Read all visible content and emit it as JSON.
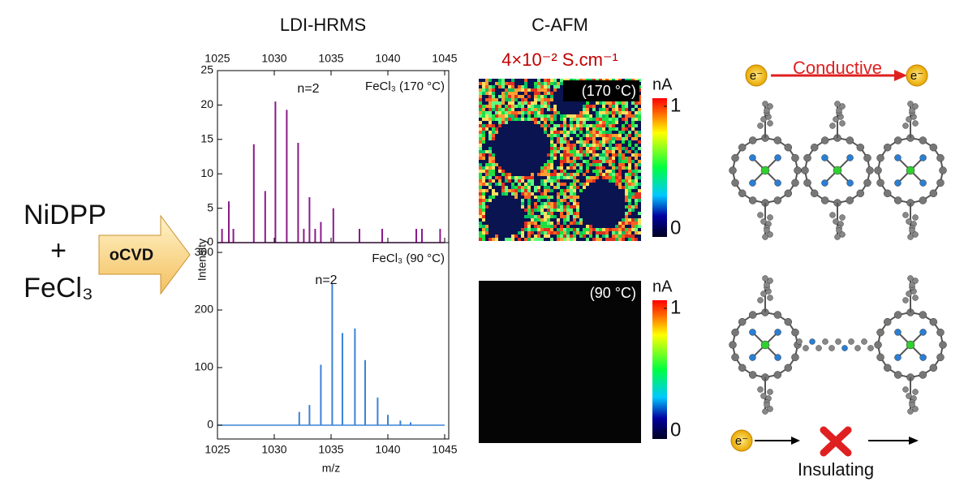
{
  "scheme": {
    "reactant": "NiDPP",
    "plus": "+",
    "oxidant": "FeCl₃",
    "process": "oCVD"
  },
  "chart_data": [
    {
      "type": "stem",
      "title": "LDI-HRMS",
      "ylabel": "Intensity",
      "annotation": "n=2",
      "label": "FeCl₃ (170 °C)",
      "color": "#8b1a8b",
      "x": [
        1025.4,
        1026.0,
        1026.4,
        1028.2,
        1029.2,
        1030.1,
        1031.1,
        1032.1,
        1032.6,
        1033.1,
        1033.6,
        1034.1,
        1035.2,
        1037.5,
        1039.5,
        1042.5,
        1043.0,
        1044.6
      ],
      "values": [
        2,
        6,
        2,
        14.3,
        7.5,
        20.5,
        19.3,
        14.5,
        2,
        6.6,
        2,
        3,
        5,
        2,
        2,
        2,
        2,
        2
      ],
      "xlim": [
        1025,
        1045
      ],
      "xticks": [
        1025,
        1030,
        1035,
        1040,
        1045
      ],
      "ylim": [
        0,
        25
      ],
      "yticks": [
        0,
        5,
        10,
        15,
        20,
        25
      ]
    },
    {
      "type": "stem",
      "xlabel": "m/z",
      "annotation": "n=2",
      "label": "FeCl₃ (90 °C)",
      "color": "#3b82d6",
      "x": [
        1032.2,
        1033.1,
        1034.1,
        1035.1,
        1036.0,
        1037.1,
        1038.0,
        1039.1,
        1040.0,
        1041.1,
        1042.0
      ],
      "values": [
        23,
        35,
        105,
        245,
        160,
        168,
        113,
        48,
        18,
        8,
        5
      ],
      "xlim": [
        1025,
        1045
      ],
      "xticks": [
        1025,
        1030,
        1035,
        1040,
        1045
      ],
      "ylim": [
        -24,
        317
      ],
      "yticks": [
        0,
        100,
        200,
        300
      ]
    }
  ],
  "afm": {
    "title": "C-AFM",
    "conductivity": "4×10⁻² S.cm⁻¹",
    "panels": [
      {
        "label": "(170 °C)"
      },
      {
        "label": "(90 °C)"
      }
    ],
    "colorbar": {
      "unit": "nA",
      "ticks": [
        0,
        1
      ]
    }
  },
  "molecules": {
    "top_label": "Conductive",
    "bottom_label": "Insulating",
    "electron": "e⁻"
  }
}
